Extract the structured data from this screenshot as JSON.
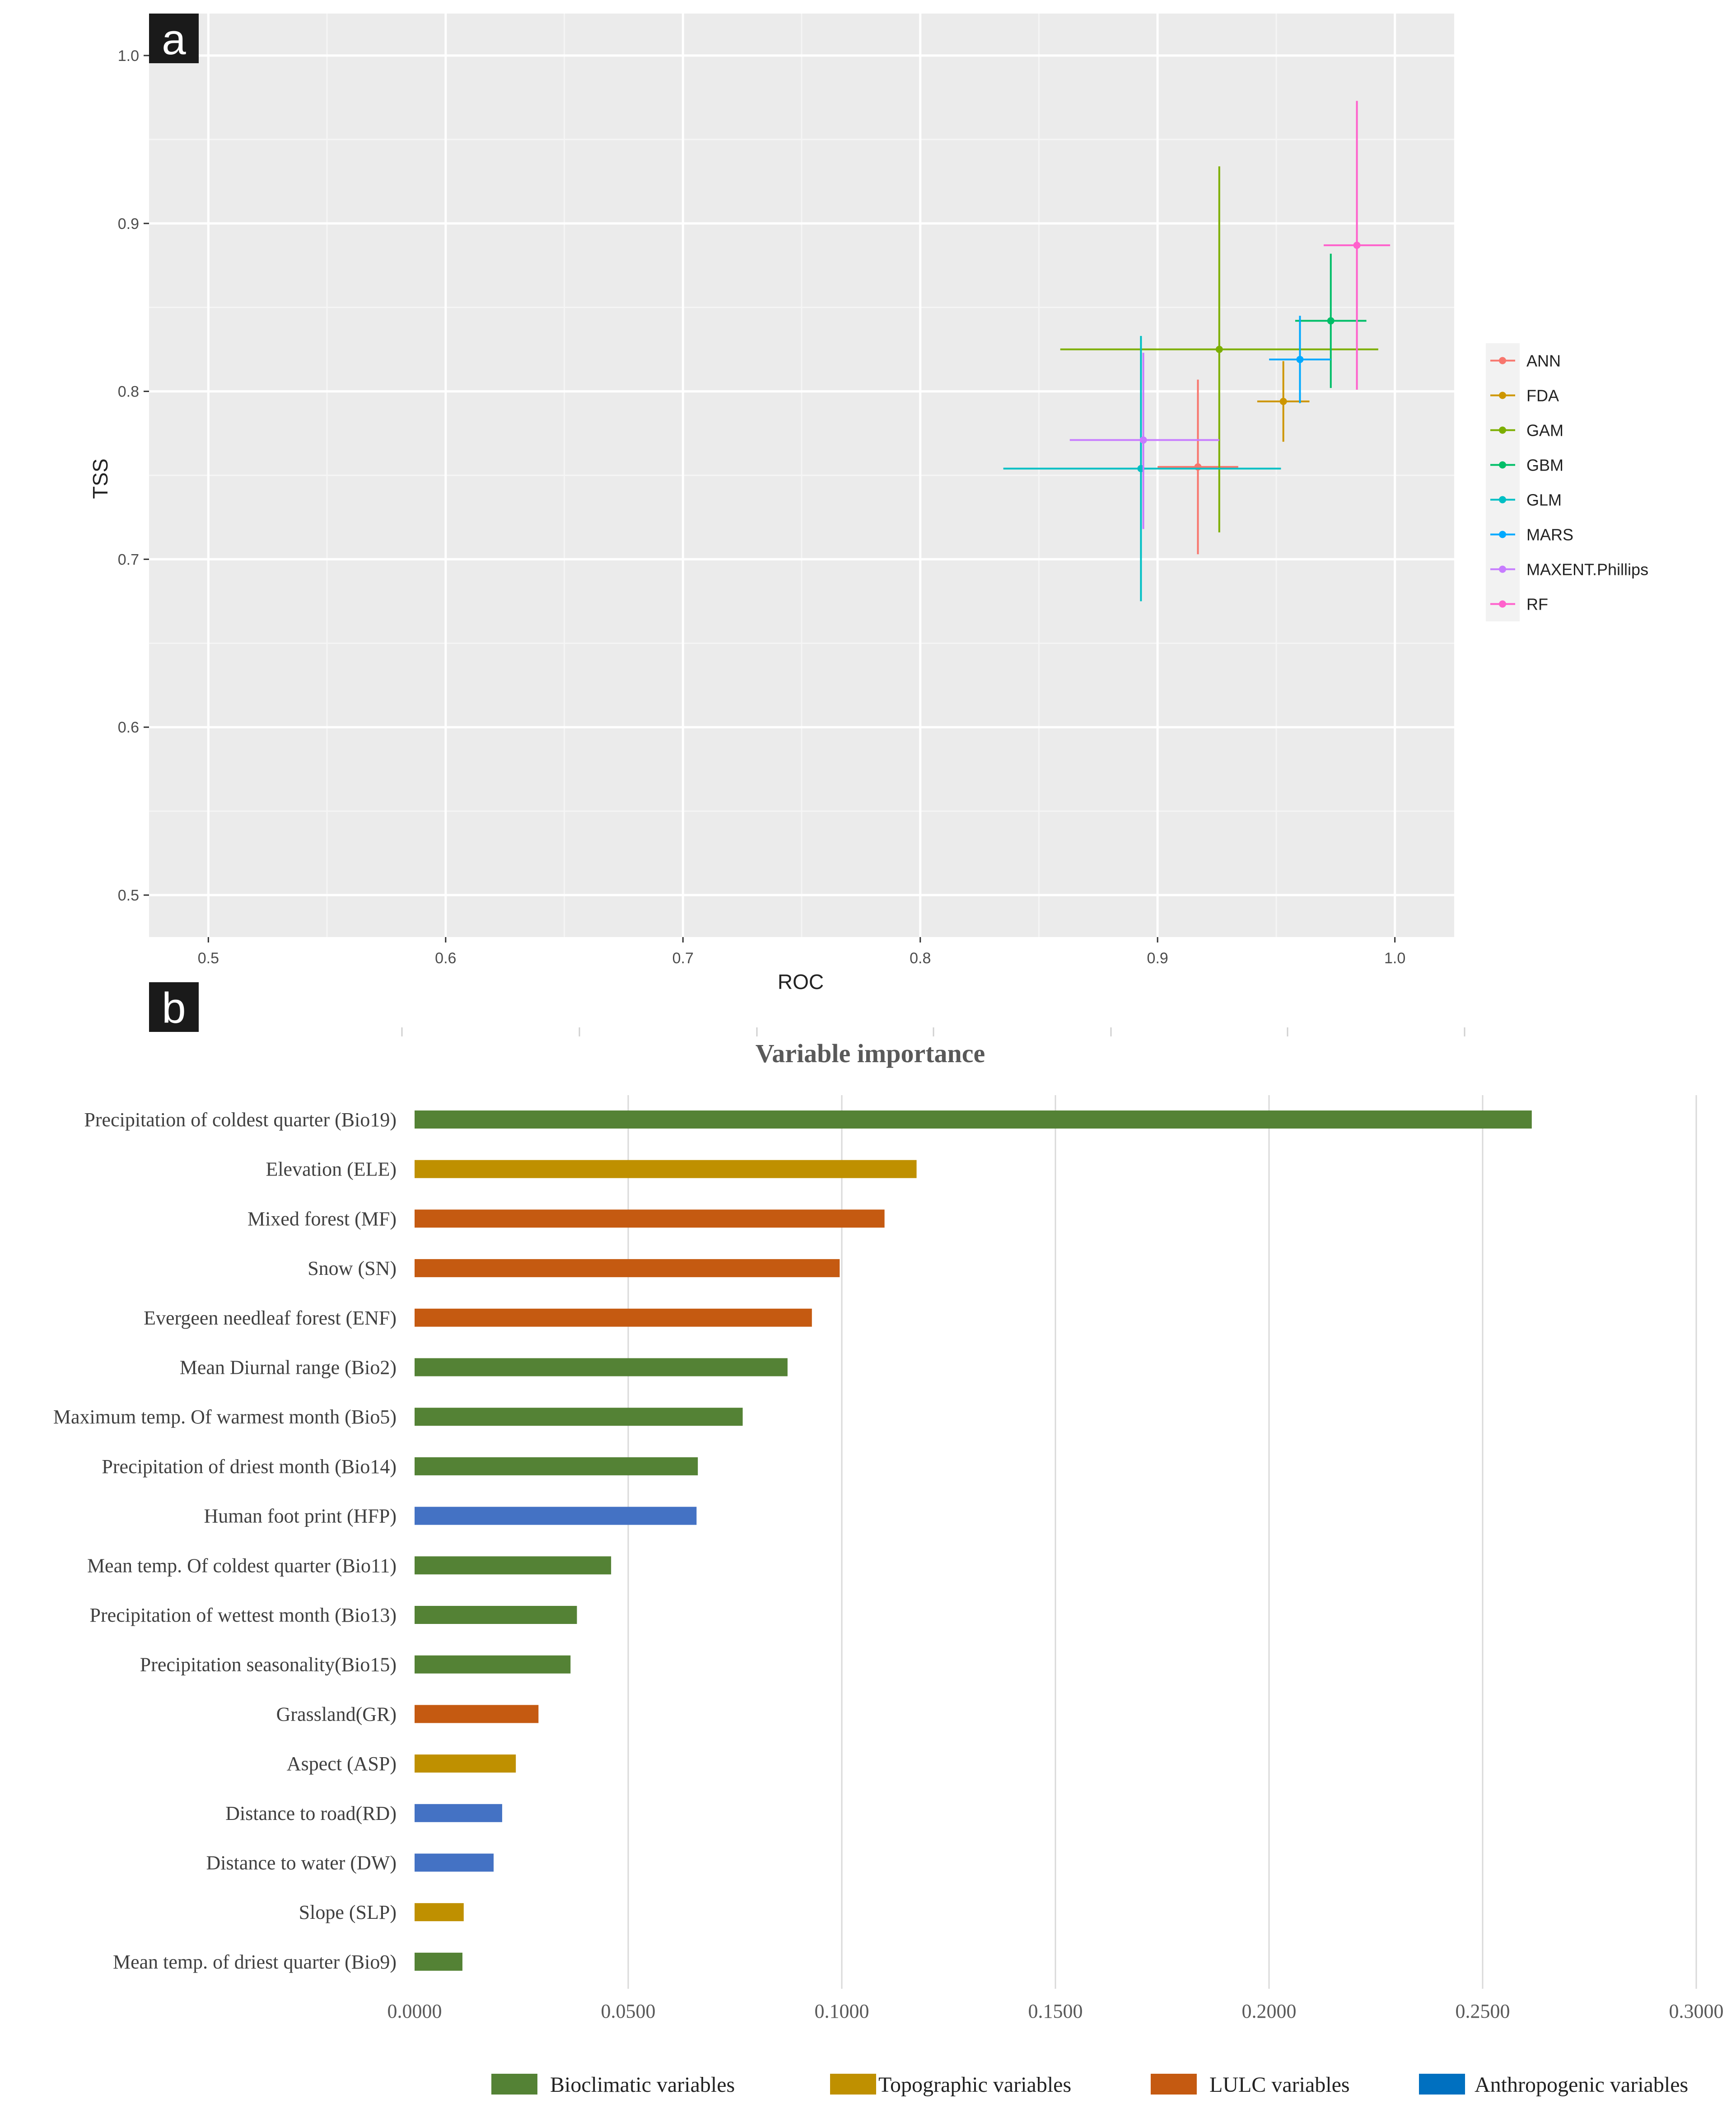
{
  "panel_labels": {
    "a": "a",
    "b": "b"
  },
  "chart_data": [
    {
      "type": "scatter",
      "panel": "a",
      "xlabel": "ROC",
      "ylabel": "TSS",
      "xlim": [
        0.475,
        1.025
      ],
      "ylim": [
        0.475,
        1.025
      ],
      "x_ticks": [
        0.5,
        0.6,
        0.7,
        0.8,
        0.9,
        1.0
      ],
      "x_tick_labels": [
        "0.5",
        "0.6",
        "0.7",
        "0.8",
        "0.9",
        "1.0"
      ],
      "y_ticks": [
        0.5,
        0.6,
        0.7,
        0.8,
        0.9,
        1.0
      ],
      "y_tick_labels": [
        "0.5",
        "0.6",
        "0.7",
        "0.8",
        "0.9",
        "1.0"
      ],
      "grid": true,
      "legend_position": "right",
      "series": [
        {
          "name": "ANN",
          "color": "#F8766D",
          "x": 0.917,
          "y": 0.755,
          "x_err": [
            0.9,
            0.934
          ],
          "y_err": [
            0.703,
            0.807
          ]
        },
        {
          "name": "FDA",
          "color": "#CD9600",
          "x": 0.953,
          "y": 0.794,
          "x_err": [
            0.942,
            0.964
          ],
          "y_err": [
            0.77,
            0.818
          ]
        },
        {
          "name": "GAM",
          "color": "#7CAE00",
          "x": 0.926,
          "y": 0.825,
          "x_err": [
            0.859,
            0.993
          ],
          "y_err": [
            0.716,
            0.934
          ]
        },
        {
          "name": "GBM",
          "color": "#00BE67",
          "x": 0.973,
          "y": 0.842,
          "x_err": [
            0.958,
            0.988
          ],
          "y_err": [
            0.802,
            0.882
          ]
        },
        {
          "name": "GLM",
          "color": "#00BFC4",
          "x": 0.893,
          "y": 0.754,
          "x_err": [
            0.835,
            0.952
          ],
          "y_err": [
            0.675,
            0.833
          ]
        },
        {
          "name": "MARS",
          "color": "#00A9FF",
          "x": 0.96,
          "y": 0.819,
          "x_err": [
            0.947,
            0.973
          ],
          "y_err": [
            0.793,
            0.845
          ]
        },
        {
          "name": "MAXENT.Phillips",
          "color": "#C77CFF",
          "x": 0.894,
          "y": 0.771,
          "x_err": [
            0.863,
            0.926
          ],
          "y_err": [
            0.718,
            0.823
          ]
        },
        {
          "name": "RF",
          "color": "#FF61CC",
          "x": 0.984,
          "y": 0.887,
          "x_err": [
            0.97,
            0.998
          ],
          "y_err": [
            0.801,
            0.973
          ]
        }
      ]
    },
    {
      "type": "bar",
      "orientation": "horizontal",
      "panel": "b",
      "title": "Variable importance",
      "xlim": [
        0,
        0.3
      ],
      "x_ticks": [
        0,
        0.05,
        0.1,
        0.15,
        0.2,
        0.25,
        0.3
      ],
      "x_tick_labels": [
        "0.0000",
        "0.0500",
        "0.1000",
        "0.1500",
        "0.2000",
        "0.2500",
        "0.3000"
      ],
      "grid": true,
      "legend_position": "bottom",
      "category_colors": {
        "Bioclimatic variables": "#548235",
        "Topographic variables": "#BF9000",
        "LULC variables": "#C55A11",
        "Anthropogenic variables": "#4472C4"
      },
      "legend": [
        {
          "label": "Bioclimatic variables",
          "color": "#548235"
        },
        {
          "label": "Topographic variables",
          "color": "#BF9000"
        },
        {
          "label": "LULC variables",
          "color": "#C55A11"
        },
        {
          "label": "Anthropogenic variables",
          "color": "#0070C0"
        }
      ],
      "bars": [
        {
          "label": "Precipitation of coldest quarter (Bio19)",
          "value": 0.2615,
          "group": "Bioclimatic variables"
        },
        {
          "label": "Elevation (ELE)",
          "value": 0.1175,
          "group": "Topographic variables"
        },
        {
          "label": "Mixed forest (MF)",
          "value": 0.11,
          "group": "LULC variables"
        },
        {
          "label": "Snow (SN)",
          "value": 0.0995,
          "group": "LULC variables"
        },
        {
          "label": "Evergeen needleaf forest (ENF)",
          "value": 0.093,
          "group": "LULC variables"
        },
        {
          "label": "Mean Diurnal range (Bio2)",
          "value": 0.0873,
          "group": "Bioclimatic variables"
        },
        {
          "label": "Maximum temp. Of warmest month (Bio5)",
          "value": 0.0768,
          "group": "Bioclimatic variables"
        },
        {
          "label": "Precipitation of driest month (Bio14)",
          "value": 0.0663,
          "group": "Bioclimatic variables"
        },
        {
          "label": "Human foot print (HFP)",
          "value": 0.066,
          "group": "Anthropogenic variables"
        },
        {
          "label": "Mean temp. Of coldest quarter (Bio11)",
          "value": 0.046,
          "group": "Bioclimatic variables"
        },
        {
          "label": "Precipitation of wettest month (Bio13)",
          "value": 0.038,
          "group": "Bioclimatic variables"
        },
        {
          "label": "Precipitation seasonality(Bio15)",
          "value": 0.0365,
          "group": "Bioclimatic variables"
        },
        {
          "label": "Grassland(GR)",
          "value": 0.029,
          "group": "LULC variables"
        },
        {
          "label": "Aspect (ASP)",
          "value": 0.0237,
          "group": "Topographic variables"
        },
        {
          "label": "Distance to road(RD)",
          "value": 0.0205,
          "group": "Anthropogenic variables"
        },
        {
          "label": "Distance to water (DW)",
          "value": 0.0185,
          "group": "Anthropogenic variables"
        },
        {
          "label": "Slope (SLP)",
          "value": 0.0115,
          "group": "Topographic variables"
        },
        {
          "label": "Mean temp. of driest quarter (Bio9)",
          "value": 0.0112,
          "group": "Bioclimatic variables"
        }
      ]
    }
  ]
}
